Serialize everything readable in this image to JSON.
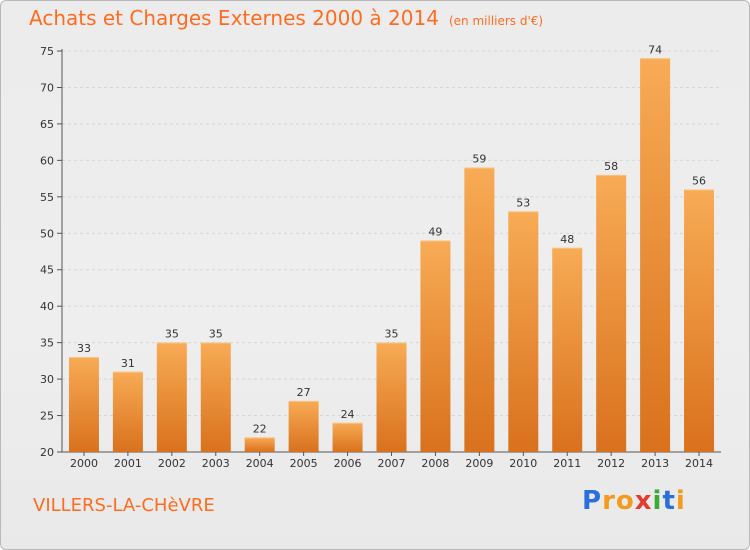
{
  "title": "Achats et Charges Externes 2000 à 2014",
  "subtitle": "(en milliers d'€)",
  "commune": "VILLERS-LA-CHèVRE",
  "logo": {
    "letters": [
      "P",
      "r",
      "o",
      "x",
      "i",
      "t",
      "i"
    ],
    "colors": [
      "#2a6fdb",
      "#f29b1d",
      "#f29b1d",
      "#e43c2f",
      "#3aaa35",
      "#2a6fdb",
      "#f29b1d"
    ]
  },
  "colors": {
    "accent": "#ff6c1f",
    "bar_light": "#f8ab55",
    "bar_dark": "#d9711d"
  },
  "chart_data": {
    "type": "bar",
    "categories": [
      "2000",
      "2001",
      "2002",
      "2003",
      "2004",
      "2005",
      "2006",
      "2007",
      "2008",
      "2009",
      "2010",
      "2011",
      "2012",
      "2013",
      "2014"
    ],
    "values": [
      33,
      31,
      35,
      35,
      22,
      27,
      24,
      35,
      49,
      59,
      53,
      48,
      58,
      74,
      56
    ],
    "ylim": [
      20,
      75
    ],
    "yticks": [
      20,
      25,
      30,
      35,
      40,
      45,
      50,
      55,
      60,
      65,
      70,
      75
    ],
    "grid": true,
    "xlabel": "",
    "ylabel": ""
  }
}
